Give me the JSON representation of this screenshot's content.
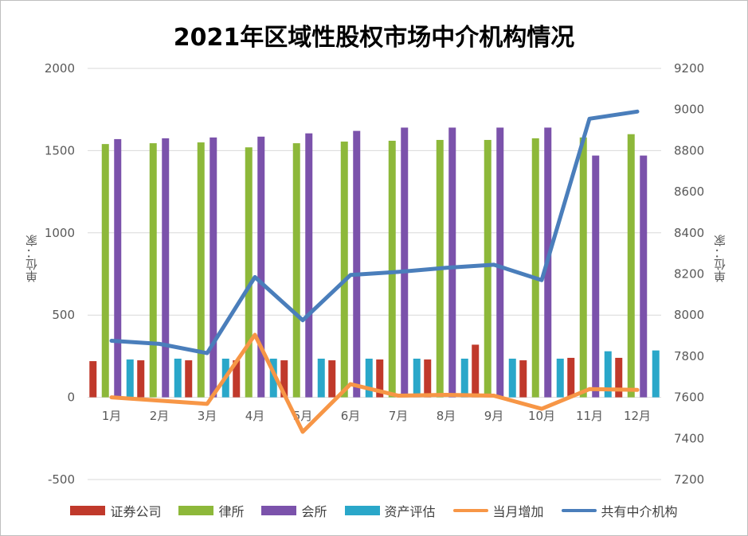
{
  "chart_data": {
    "type": "bar",
    "title": "2021年区域性股权市场中介机构情况",
    "ylabel_left": "单位：家",
    "ylabel_right": "单位：家",
    "categories": [
      "1月",
      "2月",
      "3月",
      "4月",
      "5月",
      "6月",
      "7月",
      "8月",
      "9月",
      "10月",
      "11月",
      "12月"
    ],
    "ylim_left": [
      -500,
      2000
    ],
    "yticks_left": [
      "-500",
      "0",
      "500",
      "1000",
      "1500",
      "2000"
    ],
    "ylim_right": [
      7200,
      9200
    ],
    "yticks_right": [
      "7200",
      "7400",
      "7600",
      "7800",
      "8000",
      "8200",
      "8400",
      "8600",
      "8800",
      "9000",
      "9200"
    ],
    "grid": true,
    "legend_position": "bottom",
    "series": [
      {
        "name": "证券公司",
        "type": "bar",
        "axis": "left",
        "color": "#c0392b",
        "values": [
          220,
          225,
          225,
          225,
          225,
          225,
          230,
          230,
          320,
          225,
          240,
          240
        ]
      },
      {
        "name": "律所",
        "type": "bar",
        "axis": "left",
        "color": "#8db83a",
        "values": [
          1540,
          1545,
          1550,
          1520,
          1545,
          1555,
          1560,
          1565,
          1565,
          1575,
          1580,
          1600
        ]
      },
      {
        "name": "会所",
        "type": "bar",
        "axis": "left",
        "color": "#7b52ab",
        "values": [
          1570,
          1575,
          1580,
          1585,
          1605,
          1620,
          1640,
          1640,
          1640,
          1640,
          1470,
          1470
        ]
      },
      {
        "name": "资产评估",
        "type": "bar",
        "axis": "left",
        "color": "#2aa7c9",
        "values": [
          230,
          235,
          235,
          235,
          235,
          235,
          235,
          235,
          235,
          235,
          280,
          285
        ]
      },
      {
        "name": "当月增加",
        "type": "line",
        "axis": "left",
        "color": "#f79646",
        "values": [
          0,
          -20,
          -40,
          380,
          -210,
          80,
          10,
          15,
          10,
          -70,
          50,
          45
        ]
      },
      {
        "name": "共有中介机构",
        "type": "line",
        "axis": "right",
        "color": "#4a7ebb",
        "values": [
          7875,
          7860,
          7815,
          8185,
          7975,
          8195,
          8210,
          8230,
          8245,
          8170,
          8955,
          8990
        ]
      }
    ]
  }
}
